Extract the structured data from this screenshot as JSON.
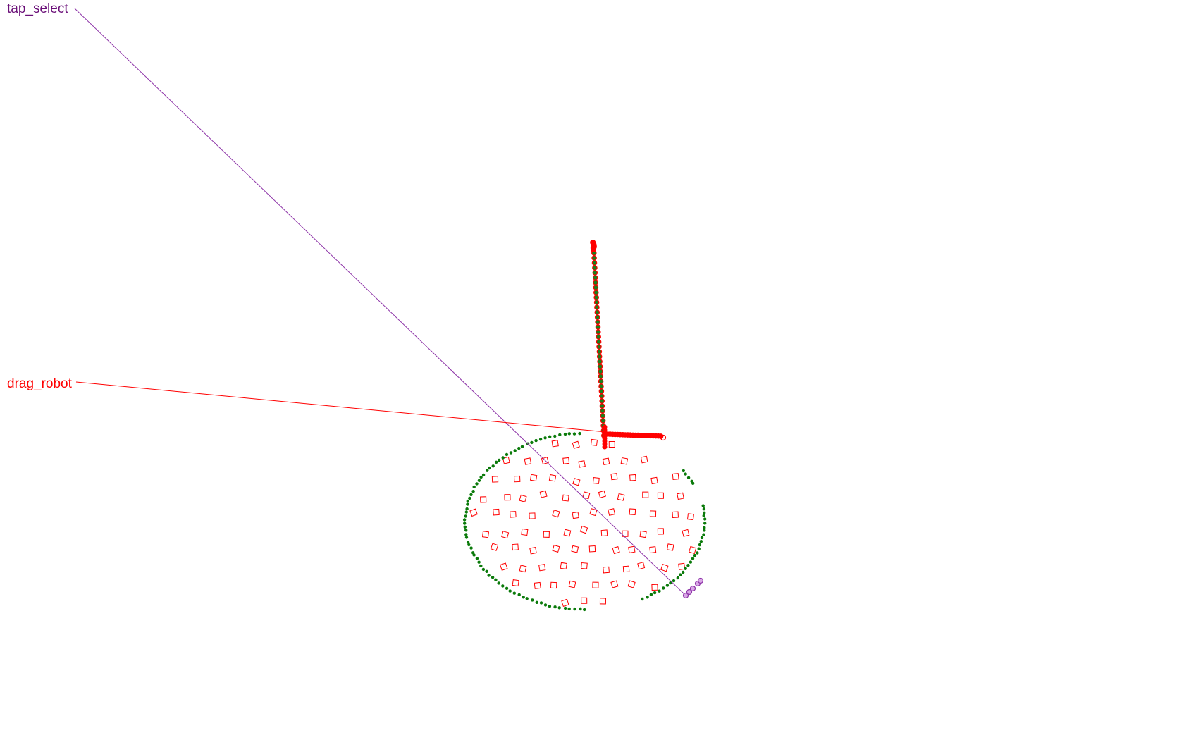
{
  "overlay": {
    "labels": [
      {
        "key": "tap",
        "text": "tap_select",
        "color": "#6a0f78"
      },
      {
        "key": "drag",
        "text": "drag_robot",
        "color": "#ff0000"
      }
    ]
  },
  "colors": {
    "tap": "#8e35a8",
    "drag": "#ff0000",
    "trail_fill": "#1a7f1a",
    "trail_dot": "#0a7a0a",
    "target": "#ff0000"
  }
}
